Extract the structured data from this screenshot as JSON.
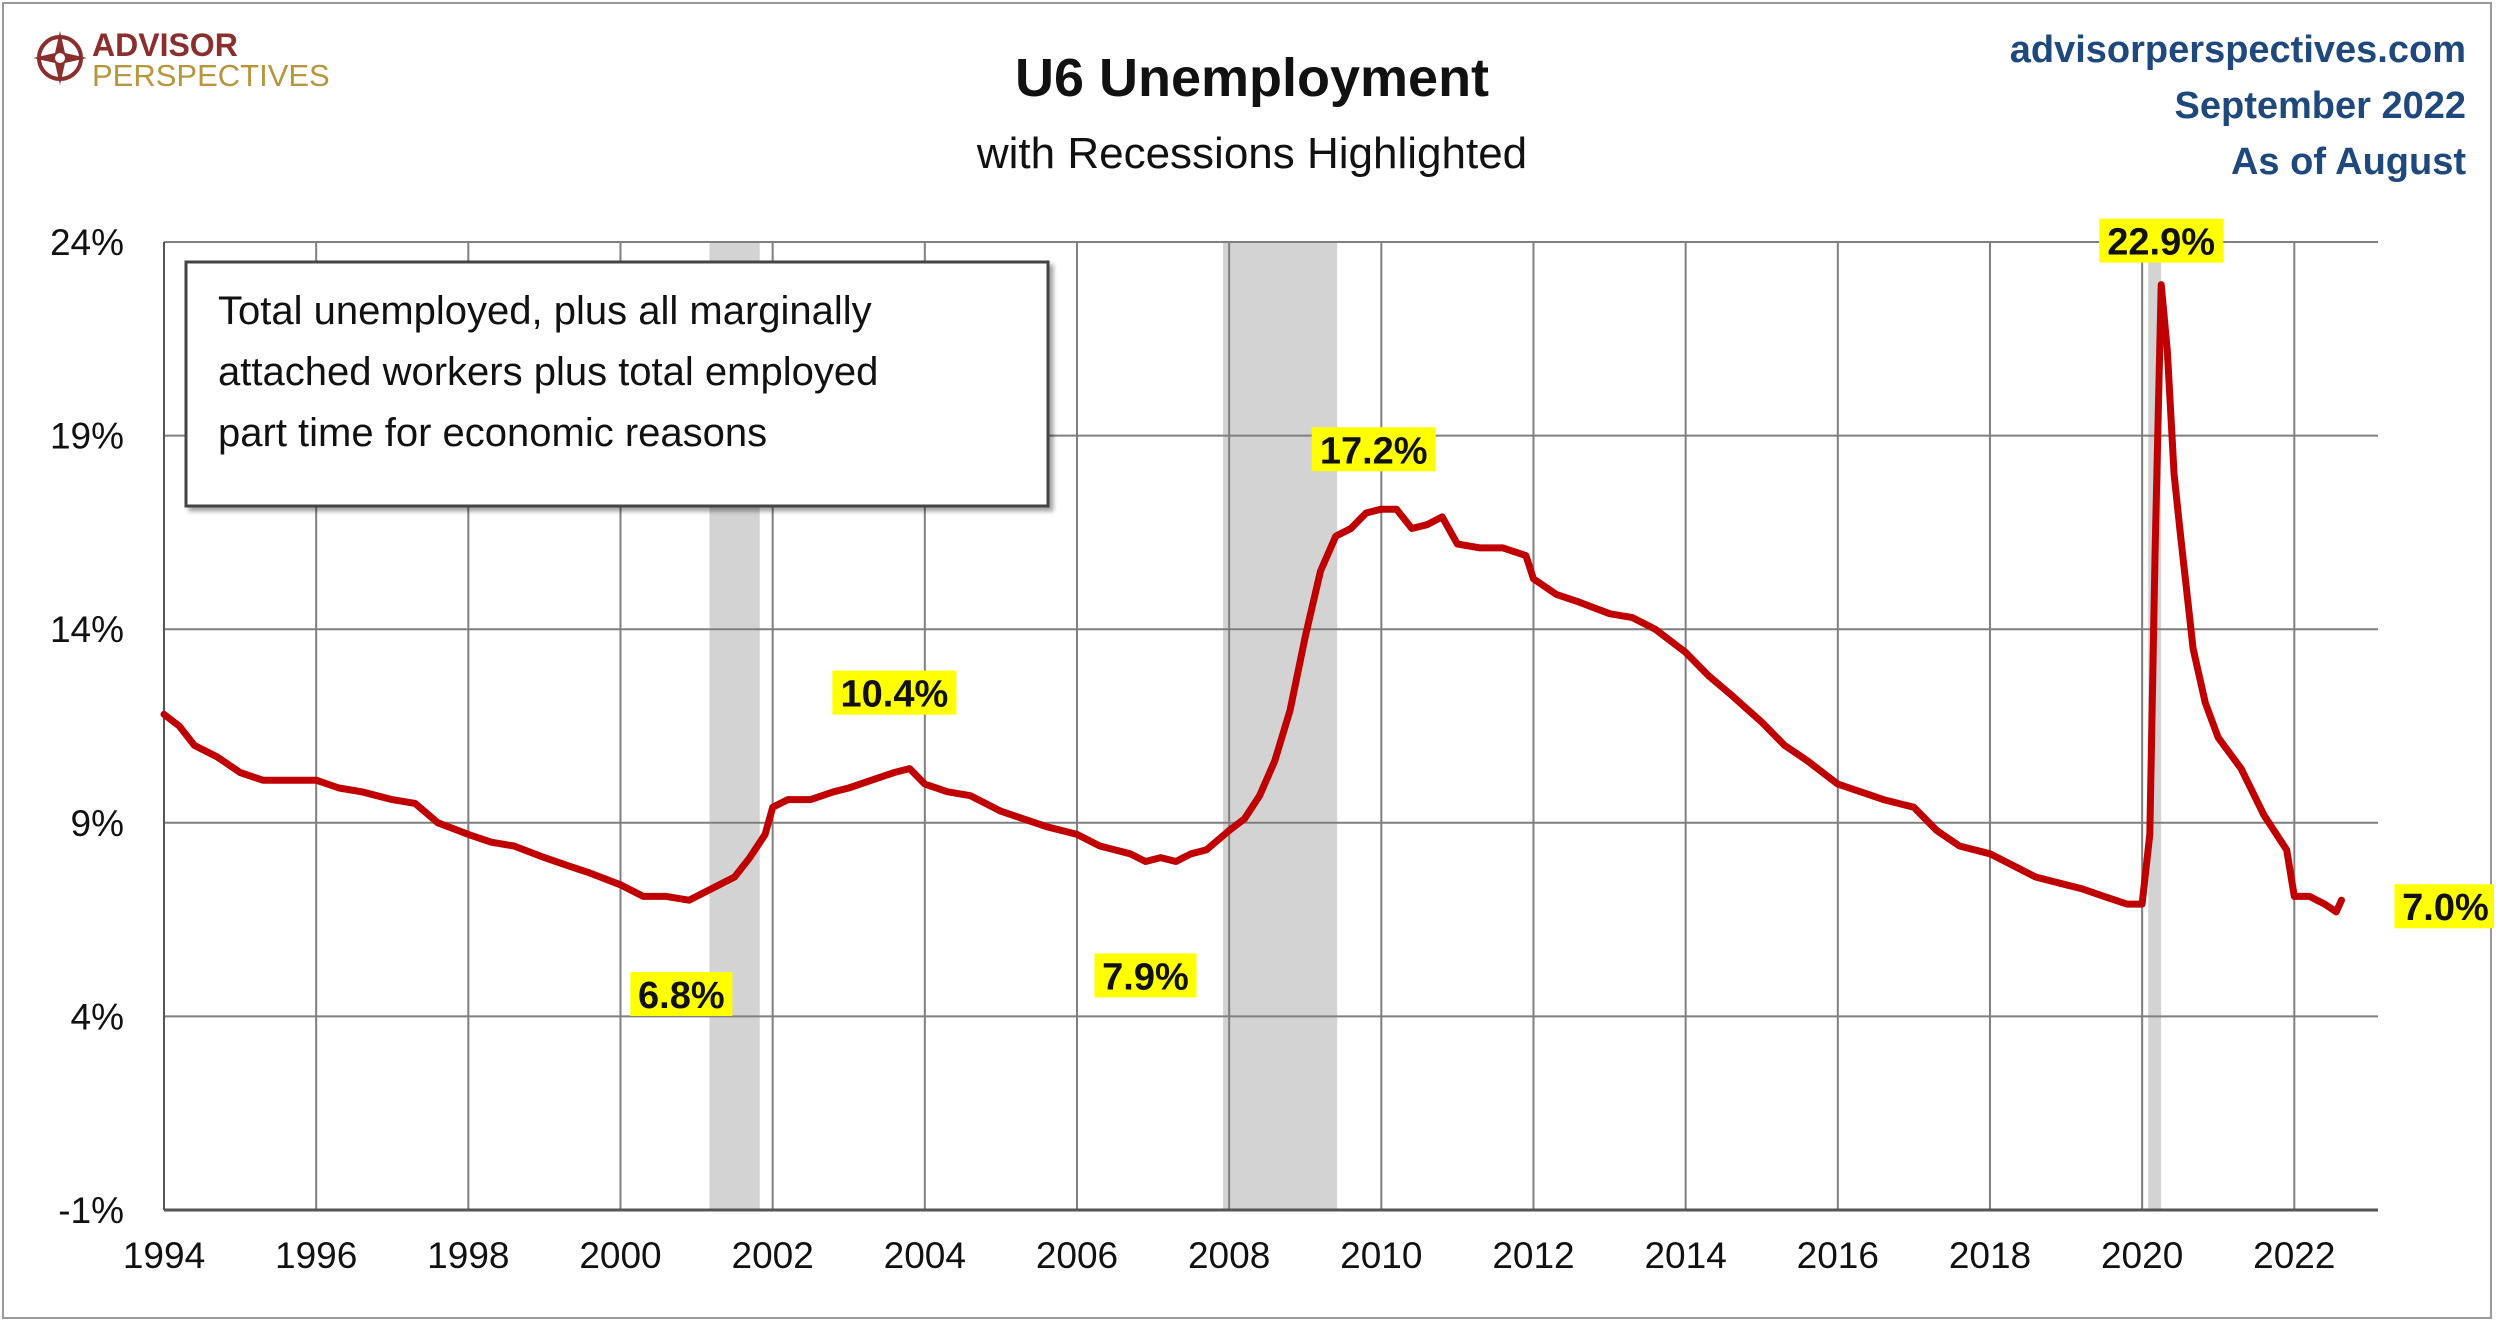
{
  "header": {
    "logo_line1": "ADVISOR",
    "logo_line2": "PERSPECTIVES",
    "title": "U6 Unemployment",
    "subtitle": "with Recessions Highlighted",
    "source_site": "advisorperspectives.com",
    "source_date": "September 2022",
    "source_asof": "As of August"
  },
  "colors": {
    "line": "#c00000",
    "recession": "#d3d3d3",
    "grid": "#7f7f7f",
    "label_bg": "#ffff00",
    "source_text": "#1f497d"
  },
  "chart_data": {
    "type": "line",
    "title": "U6 Unemployment",
    "subtitle": "with Recessions Highlighted",
    "xlabel": "",
    "ylabel": "",
    "xlim": [
      1994,
      2023.1
    ],
    "ylim": [
      -1,
      24
    ],
    "y_ticks": [
      -1,
      4,
      9,
      14,
      19,
      24
    ],
    "y_tick_labels": [
      "-1%",
      "4%",
      "9%",
      "14%",
      "19%",
      "24%"
    ],
    "x_ticks": [
      1994,
      1996,
      1998,
      2000,
      2002,
      2004,
      2006,
      2008,
      2010,
      2012,
      2014,
      2016,
      2018,
      2020,
      2022
    ],
    "x_tick_labels": [
      "1994",
      "1996",
      "1998",
      "2000",
      "2002",
      "2004",
      "2006",
      "2008",
      "2010",
      "2012",
      "2014",
      "2016",
      "2018",
      "2020",
      "2022"
    ],
    "grid": true,
    "note": [
      "Total unemployed, plus all marginally",
      "attached workers plus total employed",
      "part time for economic reasons"
    ],
    "recessions": [
      {
        "start": 2001.17,
        "end": 2001.83
      },
      {
        "start": 2007.92,
        "end": 2009.42
      },
      {
        "start": 2020.08,
        "end": 2020.25
      }
    ],
    "series": [
      {
        "values": [
          [
            1994.0,
            11.8
          ],
          [
            1994.2,
            11.5
          ],
          [
            1994.4,
            11.0
          ],
          [
            1994.7,
            10.7
          ],
          [
            1995.0,
            10.3
          ],
          [
            1995.3,
            10.1
          ],
          [
            1995.6,
            10.1
          ],
          [
            1996.0,
            10.1
          ],
          [
            1996.3,
            9.9
          ],
          [
            1996.6,
            9.8
          ],
          [
            1997.0,
            9.6
          ],
          [
            1997.3,
            9.5
          ],
          [
            1997.6,
            9.0
          ],
          [
            1998.0,
            8.7
          ],
          [
            1998.3,
            8.5
          ],
          [
            1998.6,
            8.4
          ],
          [
            1999.0,
            8.1
          ],
          [
            1999.3,
            7.9
          ],
          [
            1999.6,
            7.7
          ],
          [
            2000.0,
            7.4
          ],
          [
            2000.3,
            7.1
          ],
          [
            2000.6,
            7.1
          ],
          [
            2000.9,
            7.0
          ],
          [
            2001.0,
            7.1
          ],
          [
            2001.2,
            7.3
          ],
          [
            2001.5,
            7.6
          ],
          [
            2001.7,
            8.1
          ],
          [
            2001.9,
            8.7
          ],
          [
            2002.0,
            9.4
          ],
          [
            2002.2,
            9.6
          ],
          [
            2002.5,
            9.6
          ],
          [
            2002.8,
            9.8
          ],
          [
            2003.0,
            9.9
          ],
          [
            2003.3,
            10.1
          ],
          [
            2003.6,
            10.3
          ],
          [
            2003.8,
            10.4
          ],
          [
            2004.0,
            10.0
          ],
          [
            2004.3,
            9.8
          ],
          [
            2004.6,
            9.7
          ],
          [
            2005.0,
            9.3
          ],
          [
            2005.3,
            9.1
          ],
          [
            2005.6,
            8.9
          ],
          [
            2006.0,
            8.7
          ],
          [
            2006.3,
            8.4
          ],
          [
            2006.5,
            8.3
          ],
          [
            2006.7,
            8.2
          ],
          [
            2006.9,
            8.0
          ],
          [
            2007.1,
            8.1
          ],
          [
            2007.3,
            8.0
          ],
          [
            2007.5,
            8.2
          ],
          [
            2007.7,
            8.3
          ],
          [
            2008.0,
            8.8
          ],
          [
            2008.2,
            9.1
          ],
          [
            2008.4,
            9.7
          ],
          [
            2008.6,
            10.6
          ],
          [
            2008.8,
            11.9
          ],
          [
            2009.0,
            13.8
          ],
          [
            2009.2,
            15.5
          ],
          [
            2009.4,
            16.4
          ],
          [
            2009.6,
            16.6
          ],
          [
            2009.8,
            17.0
          ],
          [
            2010.0,
            17.1
          ],
          [
            2010.2,
            17.1
          ],
          [
            2010.4,
            16.6
          ],
          [
            2010.6,
            16.7
          ],
          [
            2010.8,
            16.9
          ],
          [
            2011.0,
            16.2
          ],
          [
            2011.3,
            16.1
          ],
          [
            2011.6,
            16.1
          ],
          [
            2011.9,
            15.9
          ],
          [
            2012.0,
            15.3
          ],
          [
            2012.3,
            14.9
          ],
          [
            2012.6,
            14.7
          ],
          [
            2013.0,
            14.4
          ],
          [
            2013.3,
            14.3
          ],
          [
            2013.6,
            14.0
          ],
          [
            2014.0,
            13.4
          ],
          [
            2014.3,
            12.8
          ],
          [
            2014.6,
            12.3
          ],
          [
            2015.0,
            11.6
          ],
          [
            2015.3,
            11.0
          ],
          [
            2015.6,
            10.6
          ],
          [
            2016.0,
            10.0
          ],
          [
            2016.3,
            9.8
          ],
          [
            2016.6,
            9.6
          ],
          [
            2017.0,
            9.4
          ],
          [
            2017.3,
            8.8
          ],
          [
            2017.6,
            8.4
          ],
          [
            2018.0,
            8.2
          ],
          [
            2018.3,
            7.9
          ],
          [
            2018.6,
            7.6
          ],
          [
            2019.0,
            7.4
          ],
          [
            2019.2,
            7.3
          ],
          [
            2019.5,
            7.1
          ],
          [
            2019.8,
            6.9
          ],
          [
            2020.0,
            6.9
          ],
          [
            2020.1,
            8.7
          ],
          [
            2020.17,
            16.0
          ],
          [
            2020.25,
            22.9
          ],
          [
            2020.33,
            21.2
          ],
          [
            2020.42,
            18.0
          ],
          [
            2020.5,
            16.5
          ],
          [
            2020.67,
            13.5
          ],
          [
            2020.83,
            12.1
          ],
          [
            2021.0,
            11.2
          ],
          [
            2021.3,
            10.4
          ],
          [
            2021.6,
            9.2
          ],
          [
            2021.9,
            8.3
          ],
          [
            2022.0,
            7.1
          ],
          [
            2022.2,
            7.1
          ],
          [
            2022.4,
            6.9
          ],
          [
            2022.55,
            6.7
          ],
          [
            2022.62,
            7.0
          ]
        ]
      }
    ],
    "annotations": [
      {
        "text": "6.8%",
        "x": 2000.8,
        "y": 6.8
      },
      {
        "text": "10.4%",
        "x": 2003.6,
        "y": 10.4
      },
      {
        "text": "7.9%",
        "x": 2006.9,
        "y": 7.9
      },
      {
        "text": "17.2%",
        "x": 2009.9,
        "y": 17.2
      },
      {
        "text": "22.9%",
        "x": 2020.25,
        "y": 22.9
      },
      {
        "text": "7.0%",
        "x": 2022.62,
        "y": 7.0
      }
    ]
  }
}
